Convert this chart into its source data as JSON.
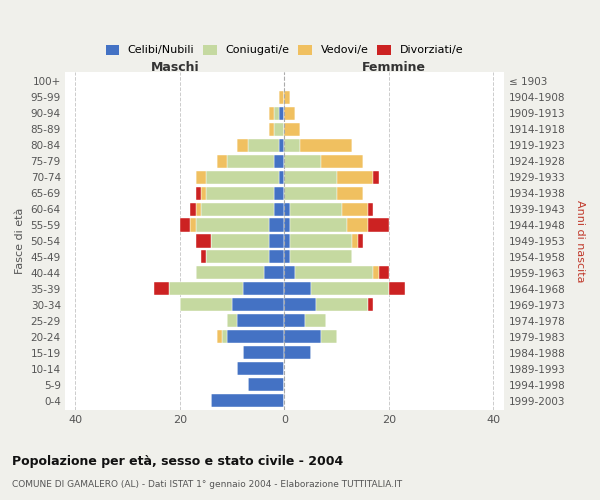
{
  "age_groups": [
    "0-4",
    "5-9",
    "10-14",
    "15-19",
    "20-24",
    "25-29",
    "30-34",
    "35-39",
    "40-44",
    "45-49",
    "50-54",
    "55-59",
    "60-64",
    "65-69",
    "70-74",
    "75-79",
    "80-84",
    "85-89",
    "90-94",
    "95-99",
    "100+"
  ],
  "birth_years": [
    "1999-2003",
    "1994-1998",
    "1989-1993",
    "1984-1988",
    "1979-1983",
    "1974-1978",
    "1969-1973",
    "1964-1968",
    "1959-1963",
    "1954-1958",
    "1949-1953",
    "1944-1948",
    "1939-1943",
    "1934-1938",
    "1929-1933",
    "1924-1928",
    "1919-1923",
    "1914-1918",
    "1909-1913",
    "1904-1908",
    "≤ 1903"
  ],
  "maschi": {
    "celibi": [
      14,
      7,
      9,
      8,
      11,
      9,
      10,
      8,
      4,
      3,
      3,
      3,
      2,
      2,
      1,
      2,
      1,
      0,
      1,
      0,
      0
    ],
    "coniugati": [
      0,
      0,
      0,
      0,
      1,
      2,
      10,
      14,
      13,
      12,
      11,
      14,
      14,
      13,
      14,
      9,
      6,
      2,
      1,
      0,
      0
    ],
    "vedovi": [
      0,
      0,
      0,
      0,
      1,
      0,
      0,
      0,
      0,
      0,
      0,
      1,
      1,
      1,
      2,
      2,
      2,
      1,
      1,
      1,
      0
    ],
    "divorziati": [
      0,
      0,
      0,
      0,
      0,
      0,
      0,
      3,
      0,
      1,
      3,
      2,
      1,
      1,
      0,
      0,
      0,
      0,
      0,
      0,
      0
    ]
  },
  "femmine": {
    "nubili": [
      0,
      0,
      0,
      5,
      7,
      4,
      6,
      5,
      2,
      1,
      1,
      1,
      1,
      0,
      0,
      0,
      0,
      0,
      0,
      0,
      0
    ],
    "coniugate": [
      0,
      0,
      0,
      0,
      3,
      4,
      10,
      15,
      15,
      12,
      12,
      11,
      10,
      10,
      10,
      7,
      3,
      0,
      0,
      0,
      0
    ],
    "vedove": [
      0,
      0,
      0,
      0,
      0,
      0,
      0,
      0,
      1,
      0,
      1,
      4,
      5,
      5,
      7,
      8,
      10,
      3,
      2,
      1,
      0
    ],
    "divorziate": [
      0,
      0,
      0,
      0,
      0,
      0,
      1,
      3,
      2,
      0,
      1,
      4,
      1,
      0,
      1,
      0,
      0,
      0,
      0,
      0,
      0
    ]
  },
  "colors": {
    "celibi": "#4472C4",
    "coniugati": "#c5d9a0",
    "vedovi": "#f0c060",
    "divorziati": "#cc2222"
  },
  "xlim": [
    -42,
    42
  ],
  "xticks": [
    -40,
    -20,
    0,
    20,
    40
  ],
  "xticklabels": [
    "40",
    "20",
    "0",
    "20",
    "40"
  ],
  "title": "Popolazione per età, sesso e stato civile - 2004",
  "subtitle": "COMUNE DI GAMALERO (AL) - Dati ISTAT 1° gennaio 2004 - Elaborazione TUTTITALIA.IT",
  "ylabel_left": "Fasce di età",
  "ylabel_right": "Anni di nascita",
  "label_maschi": "Maschi",
  "label_femmine": "Femmine",
  "legend_labels": [
    "Celibi/Nubili",
    "Coniugati/e",
    "Vedovi/e",
    "Divorziati/e"
  ],
  "bg_color": "#f0f0eb",
  "plot_bg_color": "#ffffff"
}
